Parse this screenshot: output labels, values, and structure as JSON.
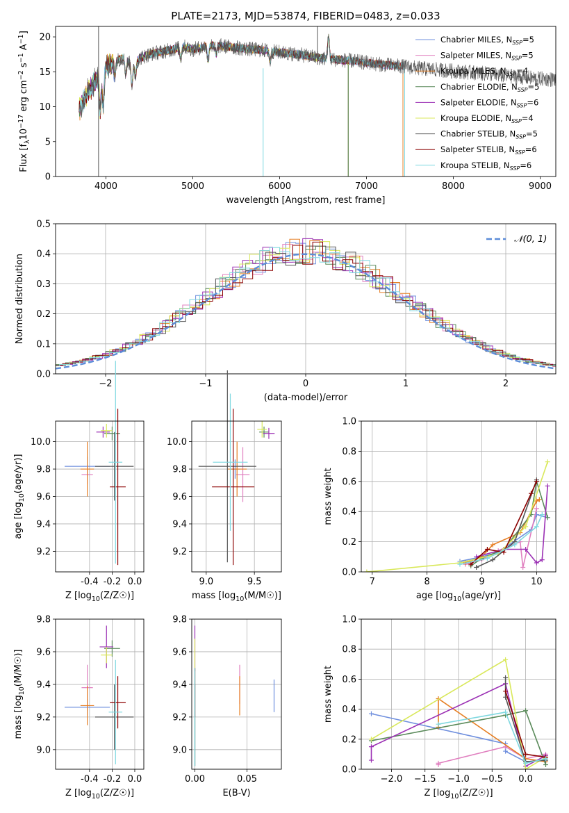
{
  "figure": {
    "title": "PLATE=2173, MJD=53874, FIBERID=0483, z=0.033"
  },
  "series_colors": [
    "#6f8fde",
    "#e07fbf",
    "#e67e22",
    "#5a8a5a",
    "#9b30b4",
    "#d9e85a",
    "#555555",
    "#8b0000",
    "#7fd8e0"
  ],
  "chart_data": [
    {
      "id": "spectrum",
      "type": "line",
      "xlabel": "wavelength [Angstrom, rest frame]",
      "ylabel": "Flux [f_λ10^-17 erg cm^-2 s^-1 A^-1]",
      "xlim": [
        3420,
        9180
      ],
      "ylim": [
        0,
        21.5
      ],
      "xticks": [
        4000,
        5000,
        6000,
        7000,
        8000,
        9000
      ],
      "yticks": [
        0,
        5,
        10,
        15,
        20
      ],
      "grid": false,
      "legend_position": "top-right",
      "data_range": [
        3690,
        9180
      ],
      "envelope": [
        [
          3690,
          9.5
        ],
        [
          3750,
          11
        ],
        [
          3800,
          12.5
        ],
        [
          3850,
          13
        ],
        [
          3900,
          14
        ],
        [
          3950,
          13.5
        ],
        [
          4000,
          15.8
        ],
        [
          4100,
          16.5
        ],
        [
          4200,
          17
        ],
        [
          4300,
          16
        ],
        [
          4400,
          17
        ],
        [
          4500,
          17.5
        ],
        [
          4700,
          18
        ],
        [
          4900,
          18.6
        ],
        [
          5000,
          18.2
        ],
        [
          5200,
          18.8
        ],
        [
          5400,
          18.6
        ],
        [
          5600,
          18.3
        ],
        [
          5800,
          18.1
        ],
        [
          6000,
          17.8
        ],
        [
          6200,
          17.5
        ],
        [
          6400,
          17.1
        ],
        [
          6600,
          16.8
        ],
        [
          6800,
          16.6
        ],
        [
          7000,
          16.3
        ],
        [
          7200,
          16.0
        ],
        [
          7400,
          15.8
        ],
        [
          7600,
          15.5
        ],
        [
          7800,
          15.3
        ],
        [
          8000,
          15.1
        ],
        [
          8200,
          14.9
        ],
        [
          8400,
          14.7
        ],
        [
          8600,
          14.4
        ],
        [
          8800,
          14.2
        ],
        [
          9000,
          14.0
        ],
        [
          9180,
          13.9
        ]
      ],
      "series": [
        {
          "name": "Chabrier MILES, N_SSP=5",
          "legend": [
            "Chabrier MILES, N",
            "SSP",
            "=5"
          ],
          "end": 7420
        },
        {
          "name": "Salpeter MILES, N_SSP=5",
          "legend": [
            "Salpeter MILES, N",
            "SSP",
            "=5"
          ],
          "end": 7420
        },
        {
          "name": "Kroupa MILES, N_SSP=4",
          "legend": [
            "Kroupa MILES, N",
            "SSP",
            "=4"
          ],
          "end": 7420
        },
        {
          "name": "Chabrier ELODIE, N_SSP=5",
          "legend": [
            "Chabrier ELODIE, N",
            "SSP",
            "=5"
          ],
          "end": 6790
        },
        {
          "name": "Salpeter ELODIE, N_SSP=6",
          "legend": [
            "Salpeter ELODIE, N",
            "SSP",
            "=6"
          ],
          "end": 6790
        },
        {
          "name": "Kroupa ELODIE, N_SSP=4",
          "legend": [
            "Kroupa ELODIE, N",
            "SSP",
            "=4"
          ],
          "end": 6790
        },
        {
          "name": "Chabrier STELIB, N_SSP=5",
          "legend": [
            "Chabrier STELIB, N",
            "SSP",
            "=5"
          ],
          "end": 9180
        },
        {
          "name": "Salpeter STELIB, N_SSP=6",
          "legend": [
            "Salpeter STELIB, N",
            "SSP",
            "=6"
          ],
          "end": 7440
        },
        {
          "name": "Kroupa STELIB, N_SSP=6",
          "legend": [
            "Kroupa STELIB, N",
            "SSP",
            "=6"
          ],
          "end": 7440
        }
      ]
    },
    {
      "id": "residuals",
      "type": "histogram",
      "xlabel": "(data-model)/error",
      "ylabel": "Normed distribution",
      "xlim": [
        -2.5,
        2.5
      ],
      "ylim": [
        0,
        0.5
      ],
      "xticks": [
        -2,
        -1,
        0,
        1,
        2
      ],
      "yticks": [
        0.0,
        0.1,
        0.2,
        0.3,
        0.4,
        0.5
      ],
      "grid": true,
      "legend_position": "top-right",
      "reference_curve": {
        "name": "N(0,1)",
        "label_main": "𝒩(0, 1)",
        "mean": 0,
        "sigma": 1,
        "color": "#5b8bd8"
      },
      "bin_edges": [
        -2.5,
        2.5
      ],
      "bin_width": 0.1
    },
    {
      "id": "age_vs_Z",
      "type": "errorbar",
      "xlabel": "Z [log10(Z/Z☉)]",
      "ylabel": "age [log10(age/yr)]",
      "xlim": [
        -0.7,
        0.08
      ],
      "ylim": [
        9.05,
        10.15
      ],
      "xticks": [
        -0.4,
        -0.2,
        0.0
      ],
      "yticks": [
        9.2,
        9.4,
        9.6,
        9.8,
        10.0
      ],
      "grid": true,
      "points": [
        {
          "x": -0.42,
          "y": 9.82,
          "xerr": 0.2,
          "yerr": 0.07
        },
        {
          "x": -0.42,
          "y": 9.76,
          "xerr": 0.05,
          "yerr": 0.07
        },
        {
          "x": -0.42,
          "y": 9.8,
          "xerr": 0.06,
          "yerr": 0.2
        },
        {
          "x": -0.2,
          "y": 10.06,
          "xerr": 0.07,
          "yerr": 0.05
        },
        {
          "x": -0.28,
          "y": 10.07,
          "xerr": 0.06,
          "yerr": 0.04
        },
        {
          "x": -0.25,
          "y": 10.08,
          "xerr": 0.05,
          "yerr": 0.05
        },
        {
          "x": -0.18,
          "y": 9.82,
          "xerr": 0.17,
          "yerr": 0.25
        },
        {
          "x": -0.15,
          "y": 9.67,
          "xerr": 0.07,
          "yerr": 0.57
        },
        {
          "x": -0.17,
          "y": 9.85,
          "xerr": 0.06,
          "yerr": 0.74
        }
      ]
    },
    {
      "id": "age_vs_mass",
      "type": "errorbar",
      "xlabel": "mass [log10(M/M☉)]",
      "ylabel": "",
      "xlim": [
        8.85,
        9.78
      ],
      "ylim": [
        9.05,
        10.15
      ],
      "xticks": [
        9.0,
        9.5
      ],
      "yticks": [
        9.2,
        9.4,
        9.6,
        9.8,
        10.0
      ],
      "grid": true,
      "points": [
        {
          "x": 9.3,
          "y": 9.8,
          "xerr": 0.05,
          "yerr": 0.07
        },
        {
          "x": 9.38,
          "y": 9.76,
          "xerr": 0.07,
          "yerr": 0.2
        },
        {
          "x": 9.32,
          "y": 9.8,
          "xerr": 0.1,
          "yerr": 0.2
        },
        {
          "x": 9.6,
          "y": 10.07,
          "xerr": 0.05,
          "yerr": 0.04
        },
        {
          "x": 9.65,
          "y": 10.06,
          "xerr": 0.06,
          "yerr": 0.04
        },
        {
          "x": 9.58,
          "y": 10.09,
          "xerr": 0.05,
          "yerr": 0.06
        },
        {
          "x": 9.22,
          "y": 9.82,
          "xerr": 0.3,
          "yerr": 0.7
        },
        {
          "x": 9.28,
          "y": 9.67,
          "xerr": 0.22,
          "yerr": 0.57
        },
        {
          "x": 9.25,
          "y": 9.85,
          "xerr": 0.18,
          "yerr": 0.5
        }
      ]
    },
    {
      "id": "weight_vs_age",
      "type": "line",
      "xlabel": "age [log10(age/yr)]",
      "ylabel": "mass weight",
      "xlim": [
        6.8,
        10.35
      ],
      "ylim": [
        0,
        1.0
      ],
      "xticks": [
        7,
        8,
        9,
        10
      ],
      "yticks": [
        0.0,
        0.2,
        0.4,
        0.6,
        0.8,
        1.0
      ],
      "grid": true,
      "series": [
        {
          "x": [
            8.6,
            9.0,
            9.3,
            9.9,
            10.0,
            10.2
          ],
          "y": [
            0.07,
            0.1,
            0.13,
            0.28,
            0.38,
            0.36
          ]
        },
        {
          "x": [
            8.7,
            9.0,
            9.3,
            9.7,
            9.75,
            10.0
          ],
          "y": [
            0.05,
            0.08,
            0.14,
            0.2,
            0.03,
            0.42
          ]
        },
        {
          "x": [
            8.7,
            9.0,
            9.2,
            9.7,
            10.0,
            10.05
          ],
          "y": [
            0.06,
            0.1,
            0.18,
            0.26,
            0.47,
            0.48
          ]
        },
        {
          "x": [
            8.8,
            9.0,
            9.4,
            9.9,
            10.0,
            10.2
          ],
          "y": [
            0.04,
            0.09,
            0.15,
            0.38,
            0.6,
            0.36
          ]
        },
        {
          "x": [
            8.9,
            9.4,
            9.8,
            10.0,
            10.1,
            10.2
          ],
          "y": [
            0.1,
            0.15,
            0.15,
            0.06,
            0.08,
            0.57
          ]
        },
        {
          "x": [
            6.9,
            8.6,
            9.3,
            9.8,
            10.2
          ],
          "y": [
            0.0,
            0.06,
            0.12,
            0.3,
            0.73
          ]
        },
        {
          "x": [
            8.9,
            9.2,
            9.6,
            10.0
          ],
          "y": [
            0.03,
            0.08,
            0.2,
            0.61
          ]
        },
        {
          "x": [
            8.8,
            9.1,
            9.4,
            9.9,
            10.0
          ],
          "y": [
            0.05,
            0.15,
            0.13,
            0.52,
            0.6
          ]
        },
        {
          "x": [
            8.6,
            9.1,
            9.6,
            10.0,
            10.1
          ],
          "y": [
            0.05,
            0.09,
            0.18,
            0.3,
            0.38
          ]
        }
      ]
    },
    {
      "id": "mass_vs_Z",
      "type": "errorbar",
      "xlabel": "Z [log10(Z/Z☉)]",
      "ylabel": "mass [log10(M/M☉)]",
      "xlim": [
        -0.7,
        0.08
      ],
      "ylim": [
        8.88,
        9.8
      ],
      "xticks": [
        -0.4,
        -0.2,
        0.0
      ],
      "yticks": [
        9.0,
        9.2,
        9.4,
        9.6,
        9.8
      ],
      "grid": true,
      "points": [
        {
          "x": -0.42,
          "y": 9.26,
          "xerr": 0.2,
          "yerr": 0.05
        },
        {
          "x": -0.42,
          "y": 9.38,
          "xerr": 0.05,
          "yerr": 0.14
        },
        {
          "x": -0.42,
          "y": 9.27,
          "xerr": 0.06,
          "yerr": 0.12
        },
        {
          "x": -0.2,
          "y": 9.62,
          "xerr": 0.07,
          "yerr": 0.05
        },
        {
          "x": -0.25,
          "y": 9.63,
          "xerr": 0.06,
          "yerr": 0.13
        },
        {
          "x": -0.25,
          "y": 9.58,
          "xerr": 0.05,
          "yerr": 0.05
        },
        {
          "x": -0.18,
          "y": 9.2,
          "xerr": 0.17,
          "yerr": 0.2
        },
        {
          "x": -0.15,
          "y": 9.29,
          "xerr": 0.07,
          "yerr": 0.16
        },
        {
          "x": -0.17,
          "y": 9.23,
          "xerr": 0.06,
          "yerr": 0.32
        }
      ]
    },
    {
      "id": "mass_vs_EBV",
      "type": "errorbar",
      "xlabel": "E(B-V)",
      "ylabel": "",
      "xlim": [
        -0.003,
        0.083
      ],
      "ylim": [
        8.88,
        9.8
      ],
      "xticks": [
        0.0,
        0.05
      ],
      "yticks": [
        9.0,
        9.2,
        9.4,
        9.6,
        9.8
      ],
      "grid": true,
      "points": [
        {
          "x": 0.076,
          "y": 9.33,
          "xerr": 0,
          "yerr": 0.1
        },
        {
          "x": 0.043,
          "y": 9.4,
          "xerr": 0,
          "yerr": 0.12
        },
        {
          "x": 0.043,
          "y": 9.33,
          "xerr": 0,
          "yerr": 0.12
        },
        {
          "x": 0.0,
          "y": 9.2,
          "xerr": 0,
          "yerr": 0.3
        },
        {
          "x": 0.0,
          "y": 9.62,
          "xerr": 0,
          "yerr": 0.14
        },
        {
          "x": 0.0,
          "y": 9.58,
          "xerr": 0,
          "yerr": 0.1
        },
        {
          "x": 0.0,
          "y": 9.15,
          "xerr": 0,
          "yerr": 0.25
        },
        {
          "x": 0.0,
          "y": 9.35,
          "xerr": 0,
          "yerr": 0.15
        },
        {
          "x": 0.0,
          "y": 9.2,
          "xerr": 0,
          "yerr": 0.3
        }
      ]
    },
    {
      "id": "weight_vs_Z",
      "type": "line",
      "xlabel": "Z [log10(Z/Z☉)]",
      "ylabel": "mass weight",
      "xlim": [
        -2.45,
        0.45
      ],
      "ylim": [
        0,
        1.0
      ],
      "xticks": [
        -2.0,
        -1.5,
        -1.0,
        -0.5,
        0.0
      ],
      "yticks": [
        0.0,
        0.2,
        0.4,
        0.6,
        0.8,
        1.0
      ],
      "grid": true,
      "series": [
        {
          "x": [
            -2.3,
            -0.3,
            -0.3,
            0.0,
            0.3
          ],
          "y": [
            0.37,
            0.17,
            0.12,
            0.05,
            0.06
          ]
        },
        {
          "x": [
            -1.3,
            -1.3,
            -0.3,
            0.0,
            0.3
          ],
          "y": [
            0.03,
            0.04,
            0.15,
            0.07,
            0.1
          ]
        },
        {
          "x": [
            -1.3,
            -1.3,
            0.0,
            0.3,
            0.3
          ],
          "y": [
            0.28,
            0.47,
            0.07,
            0.05,
            0.08
          ]
        },
        {
          "x": [
            -2.3,
            -0.3,
            0.0,
            0.3
          ],
          "y": [
            0.19,
            0.36,
            0.39,
            0.03
          ]
        },
        {
          "x": [
            -2.3,
            -2.3,
            -0.3,
            0.0,
            0.3
          ],
          "y": [
            0.06,
            0.15,
            0.57,
            0.02,
            0.09
          ]
        },
        {
          "x": [
            -2.3,
            -0.3,
            0.0,
            0.3
          ],
          "y": [
            0.2,
            0.73,
            0.0,
            0.08
          ]
        },
        {
          "x": [
            -0.3,
            -0.3,
            0.0,
            0.3
          ],
          "y": [
            0.61,
            0.48,
            0.05,
            0.06
          ]
        },
        {
          "x": [
            -0.3,
            0.0,
            0.3
          ],
          "y": [
            0.52,
            0.1,
            0.08
          ]
        },
        {
          "x": [
            -1.3,
            -0.3,
            0.0,
            0.3
          ],
          "y": [
            0.3,
            0.38,
            0.04,
            0.07
          ]
        }
      ]
    }
  ]
}
